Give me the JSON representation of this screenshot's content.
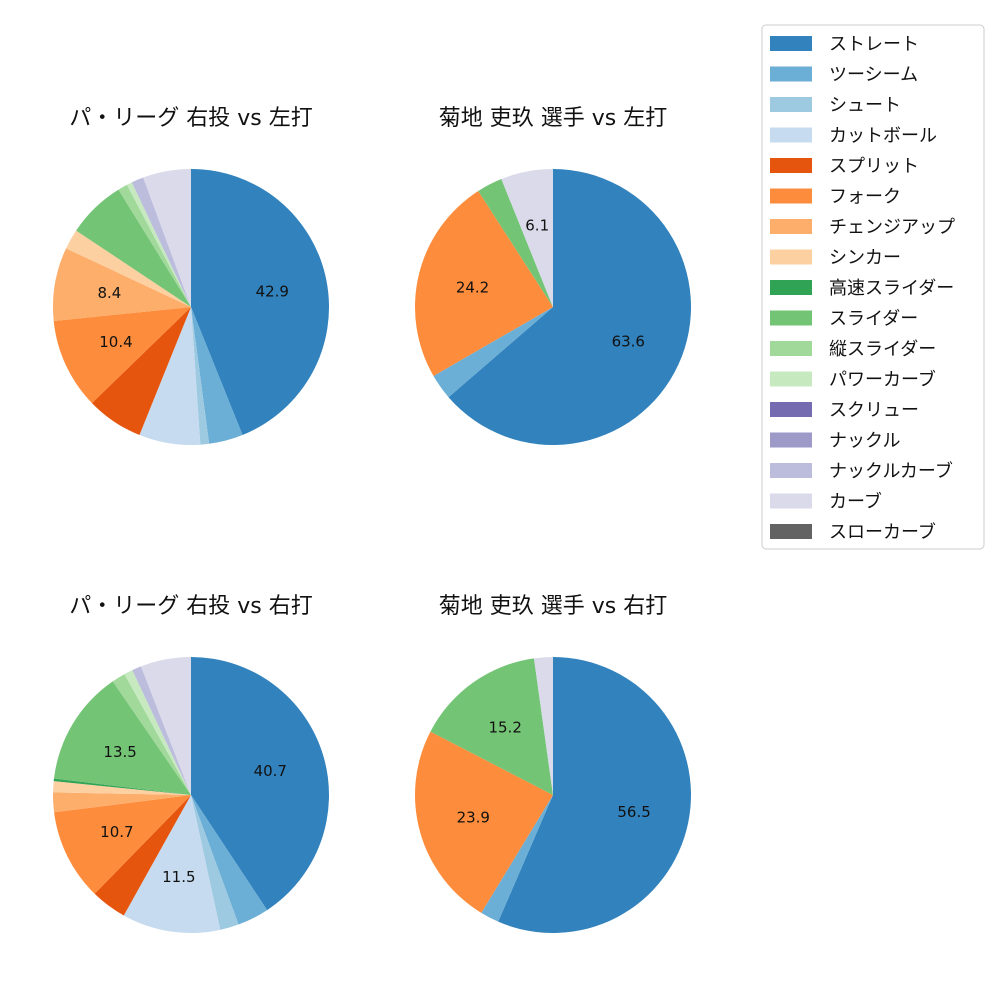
{
  "pitch_colors": {
    "ストレート": "#3182bd",
    "ツーシーム": "#6baed6",
    "シュート": "#9ecae1",
    "カットボール": "#c6dbef",
    "スプリット": "#e6550d",
    "フォーク": "#fd8d3c",
    "チェンジアップ": "#fdae6b",
    "シンカー": "#fdd0a2",
    "高速スライダー": "#31a354",
    "スライダー": "#74c476",
    "縦スライダー": "#a1d99b",
    "パワーカーブ": "#c7e9c0",
    "スクリュー": "#756bb1",
    "ナックル": "#9e9ac8",
    "ナックルカーブ": "#bcbddc",
    "カーブ": "#dadaeb",
    "スローカーブ": "#636363"
  },
  "legend": {
    "items": [
      "ストレート",
      "ツーシーム",
      "シュート",
      "カットボール",
      "スプリット",
      "フォーク",
      "チェンジアップ",
      "シンカー",
      "高速スライダー",
      "スライダー",
      "縦スライダー",
      "パワーカーブ",
      "スクリュー",
      "ナックル",
      "ナックルカーブ",
      "カーブ",
      "スローカーブ"
    ]
  },
  "chart_data": [
    {
      "type": "pie",
      "title": "パ・リーグ 右投 vs 左打",
      "slices": [
        {
          "label": "ストレート",
          "value": 42.9,
          "shown": "42.9"
        },
        {
          "label": "ツーシーム",
          "value": 3.9
        },
        {
          "label": "シュート",
          "value": 1.0
        },
        {
          "label": "カットボール",
          "value": 7.0
        },
        {
          "label": "スプリット",
          "value": 6.5
        },
        {
          "label": "フォーク",
          "value": 10.4,
          "shown": "10.4"
        },
        {
          "label": "チェンジアップ",
          "value": 8.4,
          "shown": "8.4"
        },
        {
          "label": "シンカー",
          "value": 2.3
        },
        {
          "label": "高速スライダー",
          "value": 0.0
        },
        {
          "label": "スライダー",
          "value": 6.7
        },
        {
          "label": "縦スライダー",
          "value": 1.1
        },
        {
          "label": "パワーカーブ",
          "value": 0.6
        },
        {
          "label": "スクリュー",
          "value": 0.0
        },
        {
          "label": "ナックル",
          "value": 0.0
        },
        {
          "label": "ナックルカーブ",
          "value": 1.4
        },
        {
          "label": "カーブ",
          "value": 5.5
        },
        {
          "label": "スローカーブ",
          "value": 0.0
        }
      ]
    },
    {
      "type": "pie",
      "title": "菊地 吏玖 選手 vs 左打",
      "slices": [
        {
          "label": "ストレート",
          "value": 63.6,
          "shown": "63.6"
        },
        {
          "label": "ツーシーム",
          "value": 3.0
        },
        {
          "label": "フォーク",
          "value": 24.2,
          "shown": "24.2"
        },
        {
          "label": "スライダー",
          "value": 3.0
        },
        {
          "label": "カーブ",
          "value": 6.1,
          "shown": "6.1"
        }
      ]
    },
    {
      "type": "pie",
      "title": "パ・リーグ 右投 vs 右打",
      "slices": [
        {
          "label": "ストレート",
          "value": 40.7,
          "shown": "40.7"
        },
        {
          "label": "ツーシーム",
          "value": 3.7
        },
        {
          "label": "シュート",
          "value": 2.2
        },
        {
          "label": "カットボール",
          "value": 11.5,
          "shown": "11.5"
        },
        {
          "label": "スプリット",
          "value": 4.2
        },
        {
          "label": "フォーク",
          "value": 10.7,
          "shown": "10.7"
        },
        {
          "label": "チェンジアップ",
          "value": 2.3
        },
        {
          "label": "シンカー",
          "value": 1.3
        },
        {
          "label": "高速スライダー",
          "value": 0.3
        },
        {
          "label": "スライダー",
          "value": 13.5,
          "shown": "13.5"
        },
        {
          "label": "縦スライダー",
          "value": 1.6
        },
        {
          "label": "パワーカーブ",
          "value": 1.0
        },
        {
          "label": "スクリュー",
          "value": 0.0
        },
        {
          "label": "ナックル",
          "value": 0.0
        },
        {
          "label": "ナックルカーブ",
          "value": 1.1
        },
        {
          "label": "カーブ",
          "value": 5.9
        },
        {
          "label": "スローカーブ",
          "value": 0.0
        }
      ]
    },
    {
      "type": "pie",
      "title": "菊地 吏玖 選手 vs 右打",
      "slices": [
        {
          "label": "ストレート",
          "value": 56.5,
          "shown": "56.5"
        },
        {
          "label": "ツーシーム",
          "value": 2.2
        },
        {
          "label": "フォーク",
          "value": 23.9,
          "shown": "23.9"
        },
        {
          "label": "スライダー",
          "value": 15.2,
          "shown": "15.2"
        },
        {
          "label": "カーブ",
          "value": 2.2
        }
      ]
    }
  ]
}
